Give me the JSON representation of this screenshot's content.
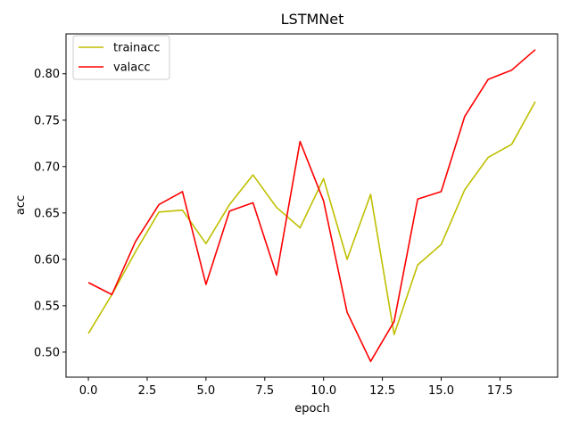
{
  "chart_data": {
    "type": "line",
    "title": "LSTMNet",
    "xlabel": "epoch",
    "ylabel": "acc",
    "xlim": [
      -0.95,
      19.95
    ],
    "ylim": [
      0.473,
      0.843
    ],
    "xticks": [
      0.0,
      2.5,
      5.0,
      7.5,
      10.0,
      12.5,
      15.0,
      17.5
    ],
    "xtick_labels": [
      "0.0",
      "2.5",
      "5.0",
      "7.5",
      "10.0",
      "12.5",
      "15.0",
      "17.5"
    ],
    "yticks": [
      0.5,
      0.55,
      0.6,
      0.65,
      0.7,
      0.75,
      0.8
    ],
    "ytick_labels": [
      "0.50",
      "0.55",
      "0.60",
      "0.65",
      "0.70",
      "0.75",
      "0.80"
    ],
    "grid": false,
    "legend_position": "top-left",
    "x": [
      0,
      1,
      2,
      3,
      4,
      5,
      6,
      7,
      8,
      9,
      10,
      11,
      12,
      13,
      14,
      15,
      16,
      17,
      18,
      19
    ],
    "series": [
      {
        "name": "trainacc",
        "color": "#bfbf00",
        "values": [
          0.52,
          0.562,
          0.608,
          0.651,
          0.653,
          0.617,
          0.659,
          0.691,
          0.656,
          0.634,
          0.687,
          0.6,
          0.67,
          0.519,
          0.594,
          0.616,
          0.675,
          0.71,
          0.724,
          0.77
        ]
      },
      {
        "name": "valacc",
        "color": "#ff0000",
        "values": [
          0.575,
          0.562,
          0.619,
          0.659,
          0.673,
          0.573,
          0.652,
          0.661,
          0.583,
          0.727,
          0.663,
          0.543,
          0.49,
          0.533,
          0.665,
          0.673,
          0.754,
          0.794,
          0.804,
          0.826
        ]
      }
    ]
  }
}
